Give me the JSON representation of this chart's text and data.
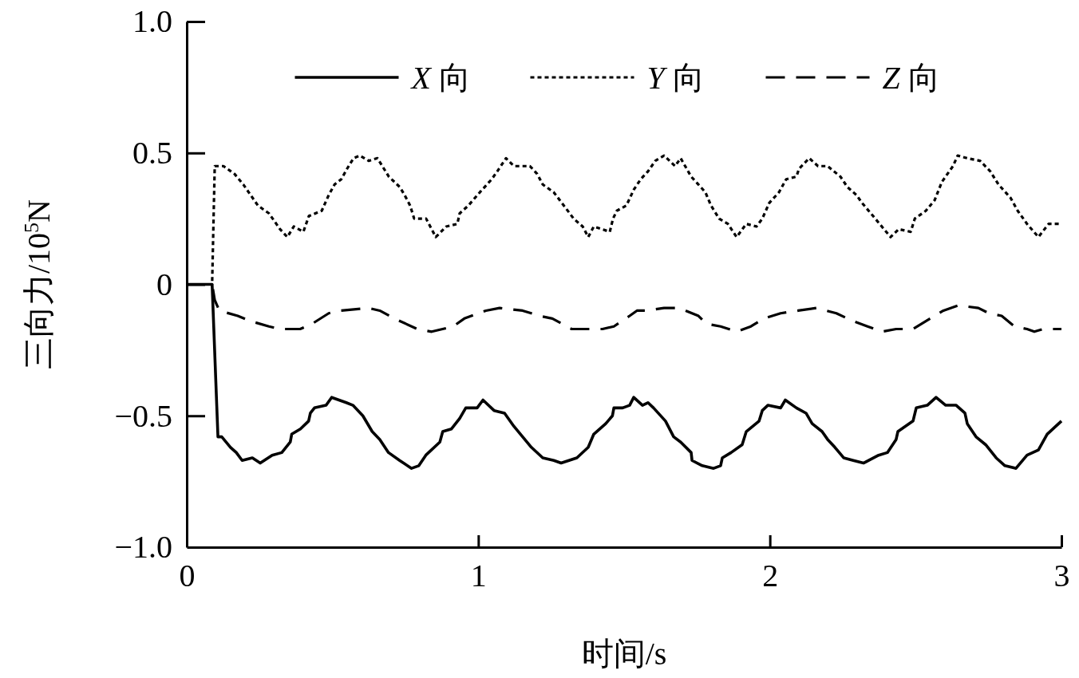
{
  "chart_data": {
    "type": "line",
    "xlabel": "时间/s",
    "ylabel": "三向力/10$^{5}$N",
    "xlim": [
      0,
      3
    ],
    "ylim": [
      -1,
      1
    ],
    "xticks": [
      0,
      1,
      2,
      3
    ],
    "yticks": [
      {
        "value": -1,
        "label": "−1.0"
      },
      {
        "value": -0.5,
        "label": "−0.5"
      },
      0,
      {
        "value": 0.5,
        "label": "0.5"
      },
      {
        "value": 1,
        "label": "1.0"
      }
    ],
    "legend": "top",
    "series": [
      {
        "name": "X 向",
        "color": "#000000",
        "line_style": "solid",
        "x": [
          0,
          0.087,
          0.107,
          0.12,
          0.15,
          0.17,
          0.19,
          0.225,
          0.252,
          0.293,
          0.326,
          0.355,
          0.36,
          0.39,
          0.418,
          0.424,
          0.438,
          0.478,
          0.497,
          0.522,
          0.547,
          0.57,
          0.604,
          0.636,
          0.662,
          0.692,
          0.73,
          0.771,
          0.796,
          0.82,
          0.868,
          0.878,
          0.908,
          0.936,
          0.957,
          0.996,
          1.016,
          1.054,
          1.09,
          1.122,
          1.152,
          1.182,
          1.221,
          1.259,
          1.284,
          1.338,
          1.377,
          1.396,
          1.437,
          1.46,
          1.465,
          1.495,
          1.519,
          1.533,
          1.563,
          1.582,
          1.601,
          1.642,
          1.67,
          1.694,
          1.73,
          1.733,
          1.768,
          1.807,
          1.831,
          1.837,
          1.867,
          1.905,
          1.919,
          1.963,
          1.974,
          1.993,
          2.037,
          2.053,
          2.091,
          2.124,
          2.145,
          2.179,
          2.198,
          2.223,
          2.253,
          2.286,
          2.321,
          2.373,
          2.403,
          2.433,
          2.439,
          2.491,
          2.502,
          2.54,
          2.57,
          2.603,
          2.639,
          2.669,
          2.677,
          2.707,
          2.74,
          2.776,
          2.806,
          2.844,
          2.882,
          2.921,
          2.951,
          3.0
        ],
        "values": [
          0,
          0,
          -0.58,
          -0.58,
          -0.62,
          -0.64,
          -0.67,
          -0.66,
          -0.68,
          -0.65,
          -0.64,
          -0.6,
          -0.57,
          -0.55,
          -0.52,
          -0.49,
          -0.47,
          -0.46,
          -0.43,
          -0.44,
          -0.45,
          -0.46,
          -0.5,
          -0.56,
          -0.59,
          -0.64,
          -0.67,
          -0.7,
          -0.69,
          -0.65,
          -0.6,
          -0.56,
          -0.55,
          -0.51,
          -0.47,
          -0.47,
          -0.44,
          -0.48,
          -0.49,
          -0.54,
          -0.58,
          -0.62,
          -0.66,
          -0.67,
          -0.68,
          -0.66,
          -0.62,
          -0.57,
          -0.53,
          -0.5,
          -0.47,
          -0.47,
          -0.46,
          -0.43,
          -0.46,
          -0.45,
          -0.47,
          -0.52,
          -0.58,
          -0.6,
          -0.64,
          -0.67,
          -0.69,
          -0.7,
          -0.69,
          -0.66,
          -0.64,
          -0.61,
          -0.56,
          -0.52,
          -0.48,
          -0.46,
          -0.47,
          -0.44,
          -0.47,
          -0.49,
          -0.53,
          -0.56,
          -0.59,
          -0.62,
          -0.66,
          -0.67,
          -0.68,
          -0.65,
          -0.64,
          -0.59,
          -0.56,
          -0.52,
          -0.47,
          -0.46,
          -0.43,
          -0.46,
          -0.46,
          -0.49,
          -0.53,
          -0.58,
          -0.61,
          -0.66,
          -0.69,
          -0.7,
          -0.65,
          -0.63,
          -0.57,
          -0.52
        ]
      },
      {
        "name": "Y 向",
        "color": "#000000",
        "line_style": "dotted",
        "x": [
          0,
          0.087,
          0.096,
          0.126,
          0.164,
          0.194,
          0.244,
          0.282,
          0.32,
          0.345,
          0.367,
          0.4,
          0.419,
          0.463,
          0.487,
          0.507,
          0.53,
          0.55,
          0.572,
          0.594,
          0.624,
          0.654,
          0.693,
          0.731,
          0.747,
          0.766,
          0.78,
          0.821,
          0.854,
          0.89,
          0.928,
          0.936,
          0.966,
          1.005,
          1.046,
          1.065,
          1.095,
          1.122,
          1.141,
          1.177,
          1.202,
          1.221,
          1.259,
          1.3,
          1.327,
          1.358,
          1.377,
          1.396,
          1.451,
          1.462,
          1.475,
          1.508,
          1.533,
          1.557,
          1.582,
          1.607,
          1.637,
          1.675,
          1.694,
          1.73,
          1.755,
          1.779,
          1.798,
          1.826,
          1.856,
          1.886,
          1.919,
          1.954,
          1.974,
          1.998,
          2.031,
          2.056,
          2.091,
          2.1,
          2.135,
          2.165,
          2.198,
          2.242,
          2.266,
          2.297,
          2.316,
          2.354,
          2.384,
          2.414,
          2.442,
          2.483,
          2.497,
          2.535,
          2.565,
          2.59,
          2.628,
          2.644,
          2.677,
          2.721,
          2.756,
          2.784,
          2.825,
          2.85,
          2.882,
          2.921,
          2.956,
          2.995
        ],
        "values": [
          0,
          0,
          0.45,
          0.45,
          0.42,
          0.38,
          0.3,
          0.27,
          0.21,
          0.18,
          0.22,
          0.2,
          0.26,
          0.28,
          0.34,
          0.38,
          0.4,
          0.44,
          0.48,
          0.49,
          0.47,
          0.48,
          0.41,
          0.37,
          0.34,
          0.3,
          0.25,
          0.25,
          0.18,
          0.22,
          0.23,
          0.27,
          0.3,
          0.35,
          0.4,
          0.43,
          0.48,
          0.45,
          0.45,
          0.45,
          0.42,
          0.38,
          0.35,
          0.29,
          0.25,
          0.22,
          0.18,
          0.22,
          0.2,
          0.25,
          0.28,
          0.3,
          0.36,
          0.4,
          0.43,
          0.47,
          0.49,
          0.45,
          0.48,
          0.41,
          0.38,
          0.35,
          0.3,
          0.25,
          0.23,
          0.18,
          0.23,
          0.22,
          0.25,
          0.31,
          0.35,
          0.4,
          0.41,
          0.44,
          0.48,
          0.45,
          0.45,
          0.41,
          0.37,
          0.34,
          0.31,
          0.26,
          0.22,
          0.18,
          0.21,
          0.2,
          0.25,
          0.28,
          0.32,
          0.39,
          0.45,
          0.49,
          0.48,
          0.47,
          0.43,
          0.38,
          0.33,
          0.28,
          0.23,
          0.18,
          0.23,
          0.23
        ]
      },
      {
        "name": "Z 向",
        "color": "#000000",
        "line_style": "dashed",
        "x": [
          0,
          0.087,
          0.096,
          0.112,
          0.175,
          0.219,
          0.282,
          0.32,
          0.389,
          0.43,
          0.487,
          0.525,
          0.624,
          0.662,
          0.712,
          0.791,
          0.84,
          0.914,
          0.952,
          1.026,
          1.073,
          1.152,
          1.21,
          1.254,
          1.32,
          1.358,
          1.426,
          1.465,
          1.519,
          1.544,
          1.574,
          1.637,
          1.689,
          1.755,
          1.782,
          1.831,
          1.886,
          1.935,
          1.979,
          2.037,
          2.097,
          2.16,
          2.228,
          2.286,
          2.335,
          2.384,
          2.433,
          2.491,
          2.535,
          2.595,
          2.647,
          2.715,
          2.751,
          2.795,
          2.839,
          2.882,
          2.907,
          2.937,
          3.0
        ],
        "values": [
          0,
          0,
          -0.06,
          -0.1,
          -0.12,
          -0.14,
          -0.16,
          -0.17,
          -0.17,
          -0.15,
          -0.11,
          -0.1,
          -0.09,
          -0.1,
          -0.13,
          -0.17,
          -0.18,
          -0.16,
          -0.13,
          -0.1,
          -0.09,
          -0.1,
          -0.12,
          -0.13,
          -0.17,
          -0.17,
          -0.17,
          -0.16,
          -0.12,
          -0.1,
          -0.1,
          -0.09,
          -0.09,
          -0.12,
          -0.15,
          -0.16,
          -0.18,
          -0.16,
          -0.13,
          -0.11,
          -0.1,
          -0.09,
          -0.11,
          -0.14,
          -0.16,
          -0.18,
          -0.17,
          -0.17,
          -0.14,
          -0.1,
          -0.08,
          -0.09,
          -0.11,
          -0.12,
          -0.16,
          -0.17,
          -0.18,
          -0.17,
          -0.17
        ]
      }
    ]
  }
}
